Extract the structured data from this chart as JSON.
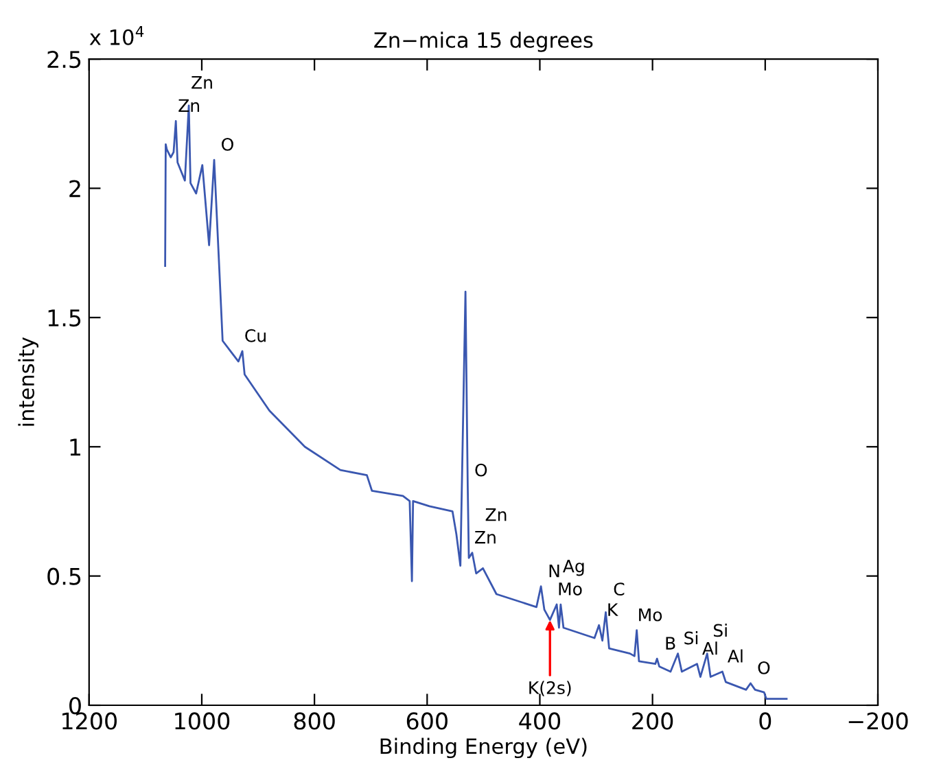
{
  "chart_data": {
    "type": "line",
    "title": "Zn−mica 15 degrees",
    "xlabel": "Binding Energy (eV)",
    "ylabel": "intensity",
    "x": [
      1065,
      1064,
      1062,
      1055,
      1050,
      1046,
      1043,
      1030,
      1023,
      1020,
      1010,
      999,
      987,
      978,
      970,
      963,
      949,
      935,
      928,
      924,
      880,
      817,
      754,
      707,
      698,
      643,
      631,
      627,
      625,
      596,
      555,
      548,
      541,
      532,
      528,
      526,
      520,
      513,
      501,
      477,
      406,
      398,
      392,
      382,
      370,
      366,
      363,
      358,
      303,
      295,
      289,
      283,
      277,
      240,
      232,
      228,
      224,
      195,
      192,
      188,
      168,
      155,
      148,
      121,
      115,
      103,
      97,
      76,
      70,
      34,
      26,
      18,
      2,
      -2,
      -38
    ],
    "series": [
      {
        "color": "#3a57b0",
        "values": [
          1.7,
          2.17,
          2.15,
          2.12,
          2.14,
          2.26,
          2.1,
          2.03,
          2.32,
          2.02,
          1.98,
          2.09,
          1.78,
          2.11,
          1.74,
          1.41,
          1.37,
          1.33,
          1.37,
          1.28,
          1.14,
          1.0,
          0.91,
          0.89,
          0.83,
          0.81,
          0.79,
          0.48,
          0.79,
          0.77,
          0.75,
          0.66,
          0.54,
          1.6,
          0.85,
          0.57,
          0.59,
          0.51,
          0.53,
          0.43,
          0.38,
          0.46,
          0.37,
          0.33,
          0.39,
          0.3,
          0.39,
          0.3,
          0.26,
          0.31,
          0.25,
          0.36,
          0.22,
          0.2,
          0.19,
          0.29,
          0.17,
          0.16,
          0.18,
          0.15,
          0.13,
          0.2,
          0.13,
          0.16,
          0.11,
          0.2,
          0.11,
          0.13,
          0.09,
          0.06,
          0.085,
          0.06,
          0.05,
          0.025,
          0.025
        ]
      }
    ],
    "xlim": [
      1200,
      -200
    ],
    "xticks": [
      1200,
      1000,
      800,
      600,
      400,
      200,
      0,
      {
        "value": -200,
        "label": "−200"
      }
    ],
    "ylim": [
      0,
      2.5
    ],
    "yticks": [
      0,
      0.5,
      1,
      1.5,
      2,
      2.5
    ],
    "annotations": [
      "x 10$^{4}$",
      {
        "text": "Zn",
        "x": 1046,
        "y": 2.26
      },
      {
        "text": "Zn",
        "x": 1023,
        "y": 2.32
      },
      {
        "text": "O",
        "x": 978,
        "y": 2.11
      },
      {
        "text": "Cu",
        "x": 928,
        "y": 1.37
      },
      {
        "text": "O",
        "x": 528,
        "y": 0.85
      },
      {
        "text": "Zn",
        "x": 520,
        "y": 0.59
      },
      {
        "text": "Zn",
        "x": 501,
        "y": 0.53
      },
      {
        "text": "N",
        "x": 398,
        "y": 0.46
      },
      {
        "text": "Mo",
        "x": 370,
        "y": 0.39
      },
      {
        "text": "Ag",
        "x": 363,
        "y": 0.39
      },
      {
        "text": "K",
        "x": 295,
        "y": 0.31
      },
      {
        "text": "C",
        "x": 283,
        "y": 0.36
      },
      {
        "text": "Mo",
        "x": 228,
        "y": 0.29
      },
      {
        "text": "B",
        "x": 192,
        "y": 0.18
      },
      {
        "text": "Si",
        "x": 155,
        "y": 0.2
      },
      {
        "text": "Al",
        "x": 121,
        "y": 0.16
      },
      {
        "text": "Si",
        "x": 103,
        "y": 0.2
      },
      {
        "text": "Al",
        "x": 76,
        "y": 0.13
      },
      {
        "text": "O",
        "x": 26,
        "y": 0.085
      },
      {
        "text": "K(2s)",
        "x": 382,
        "y": 0.33
      }
    ],
    "grid": false,
    "legend": false
  }
}
